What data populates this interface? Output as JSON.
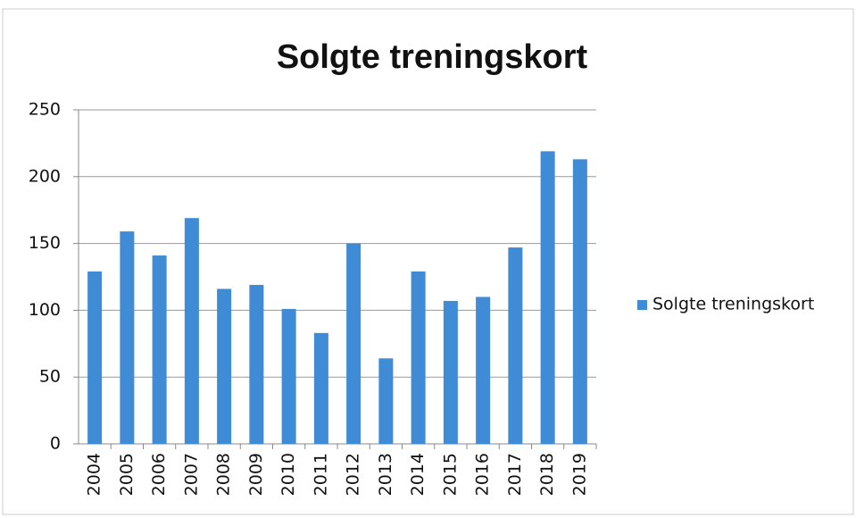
{
  "chart_data": {
    "type": "bar",
    "title": "Solgte treningskort",
    "categories": [
      "2004",
      "2005",
      "2006",
      "2007",
      "2008",
      "2009",
      "2010",
      "2011",
      "2012",
      "2013",
      "2014",
      "2015",
      "2016",
      "2017",
      "2018",
      "2019"
    ],
    "series": [
      {
        "name": "Solgte treningskort",
        "color": "#3f8bd6",
        "values": [
          129,
          159,
          141,
          169,
          116,
          119,
          101,
          83,
          150,
          64,
          129,
          107,
          110,
          147,
          219,
          213
        ]
      }
    ],
    "ylim": [
      0,
      250
    ],
    "yticks": [
      0,
      50,
      100,
      150,
      200,
      250
    ],
    "grid": true,
    "legend": "right"
  }
}
